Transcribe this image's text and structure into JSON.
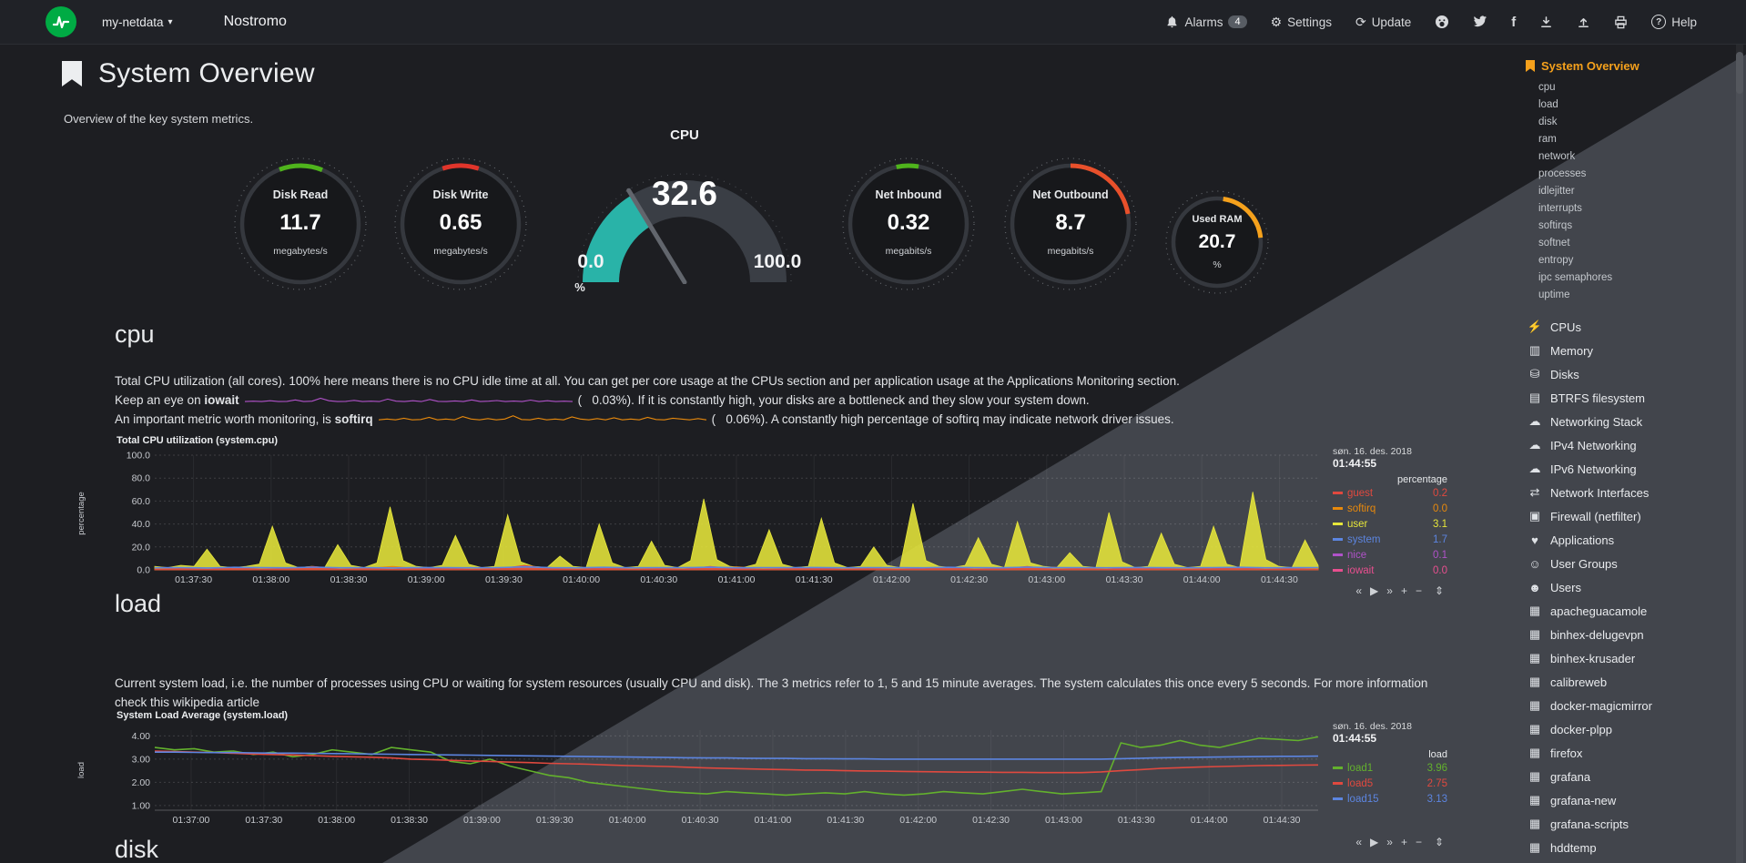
{
  "navbar": {
    "menu_label": "my-netdata",
    "hostname": "Nostromo",
    "alarms_label": "Alarms",
    "alarms_count": "4",
    "settings_label": "Settings",
    "update_label": "Update",
    "help_label": "Help"
  },
  "page": {
    "title": "System Overview",
    "subtitle": "Overview of the key system metrics.",
    "cpu_heading": "cpu",
    "load_heading": "load",
    "disk_heading": "disk"
  },
  "cpu_text": {
    "p1": "Total CPU utilization (all cores). 100% here means there is no CPU idle time at all. You can get per core usage at the CPUs section and per application usage at the Applications Monitoring section.",
    "p2_pre": "Keep an eye on ",
    "p2_bold": "iowait",
    "p2_open": "(   ",
    "p2_value": "0.03%",
    "p2_post": "). If it is constantly high, your disks are a bottleneck and they slow your system down.",
    "p3_pre": "An important metric worth monitoring, is ",
    "p3_bold": "softirq",
    "p3_open": "(   ",
    "p3_value": "0.06%",
    "p3_post": "). A constantly high percentage of softirq may indicate network driver issues."
  },
  "load_text": {
    "p1": "Current system load, i.e. the number of processes using CPU or waiting for system resources (usually CPU and disk). The 3 metrics refer to 1, 5 and 15 minute averages. The system calculates this once every 5 seconds. For more information check this wikipedia article"
  },
  "gauges": [
    {
      "id": "disk-read",
      "label": "Disk Read",
      "value": "11.7",
      "unit": "megabytes/s",
      "arc_color": "#4fb41c",
      "arc_offset": -21,
      "arc_sweep": 43
    },
    {
      "id": "disk-write",
      "label": "Disk Write",
      "value": "0.65",
      "unit": "megabytes/s",
      "arc_color": "#e0352b",
      "arc_offset": -18,
      "arc_sweep": 36
    },
    {
      "id": "net-inbound",
      "label": "Net Inbound",
      "value": "0.32",
      "unit": "megabits/s",
      "arc_color": "#4fb41c",
      "arc_offset": -12,
      "arc_sweep": 22
    },
    {
      "id": "net-outbound",
      "label": "Net Outbound",
      "value": "8.7",
      "unit": "megabits/s",
      "arc_color": "#e8502b",
      "arc_offset": 0,
      "arc_sweep": 80
    },
    {
      "id": "used-ram",
      "label": "Used RAM",
      "value": "20.7",
      "unit": "%",
      "arc_color": "#f5a11c",
      "arc_offset": 8,
      "arc_sweep": 76
    }
  ],
  "cpu_gauge": {
    "title": "CPU",
    "value": "32.6",
    "min": "0.0",
    "max": "100.0",
    "unit": "%",
    "percent": 32.6,
    "color": "#29b3a8"
  },
  "charts": {
    "cpu": {
      "title": "Total CPU utilization (system.cpu)",
      "date": "søn. 16. des. 2018",
      "time": "01:44:55",
      "unit": "percentage",
      "legend": [
        {
          "name": "guest",
          "value": "0.2",
          "color": "#e0493f"
        },
        {
          "name": "softirq",
          "value": "0.0",
          "color": "#e8890c"
        },
        {
          "name": "user",
          "value": "3.1",
          "color": "#e6e63a"
        },
        {
          "name": "system",
          "value": "1.7",
          "color": "#5c85e0"
        },
        {
          "name": "nice",
          "value": "0.1",
          "color": "#b052c9"
        },
        {
          "name": "iowait",
          "value": "0.0",
          "color": "#e84f8f"
        }
      ]
    },
    "load": {
      "title": "System Load Average (system.load)",
      "date": "søn. 16. des. 2018",
      "time": "01:44:55",
      "unit": "load",
      "legend": [
        {
          "name": "load1",
          "value": "3.96",
          "color": "#63b12d"
        },
        {
          "name": "load5",
          "value": "2.75",
          "color": "#e0493f"
        },
        {
          "name": "load15",
          "value": "3.13",
          "color": "#5c85e0"
        }
      ]
    }
  },
  "chart_data": [
    {
      "type": "area",
      "title": "Total CPU utilization (system.cpu)",
      "ylabel": "percentage",
      "ylim": [
        0,
        100
      ],
      "yticks": [
        "100.0",
        "80.0",
        "60.0",
        "40.0",
        "20.0",
        "0.0"
      ],
      "x": [
        "01:37:30",
        "01:38:00",
        "01:38:30",
        "01:39:00",
        "01:39:30",
        "01:40:00",
        "01:40:30",
        "01:41:00",
        "01:41:30",
        "01:42:00",
        "01:42:30",
        "01:43:00",
        "01:43:30",
        "01:44:00",
        "01:44:30"
      ],
      "series": [
        {
          "name": "user",
          "color": "#e6e63a",
          "fill": true,
          "values": [
            3,
            2,
            4,
            3,
            18,
            3,
            2,
            3,
            5,
            38,
            6,
            2,
            3,
            2,
            22,
            4,
            2,
            6,
            55,
            8,
            3,
            2,
            4,
            30,
            5,
            2,
            3,
            48,
            7,
            3,
            2,
            12,
            3,
            2,
            40,
            6,
            2,
            3,
            25,
            4,
            2,
            8,
            62,
            9,
            3,
            2,
            5,
            35,
            5,
            2,
            3,
            45,
            6,
            2,
            3,
            20,
            4,
            2,
            58,
            8,
            3,
            2,
            4,
            28,
            5,
            2,
            42,
            6,
            3,
            2,
            15,
            3,
            2,
            50,
            7,
            2,
            3,
            32,
            5,
            2,
            3,
            38,
            5,
            2,
            68,
            9,
            3,
            2,
            26,
            4
          ]
        },
        {
          "name": "softirq",
          "color": "#e8890c",
          "fill": true,
          "values": [
            1,
            1.5,
            1,
            2,
            1,
            1.2,
            2.5,
            1,
            1.5,
            3,
            1.2,
            1,
            1.4,
            2,
            1,
            1.3,
            1,
            2.2,
            1.2,
            1,
            1.5,
            1,
            2.8,
            1.1,
            1,
            1.4,
            1,
            2,
            1,
            1.2,
            1.6,
            1,
            1.3,
            1,
            2.4,
            1,
            1.5,
            1,
            1.2,
            1,
            1.8,
            1,
            1.4,
            1,
            1.2
          ]
        },
        {
          "name": "guest",
          "color": "#e0493f",
          "fill": true,
          "values": [
            0.5,
            1,
            0.5,
            2,
            0.5,
            1,
            3,
            0.5,
            1,
            0.5,
            2,
            1,
            0.5,
            1,
            4,
            1,
            0.5,
            2,
            0.5,
            1,
            0.5,
            3,
            1,
            0.5,
            1,
            2,
            0.5,
            1,
            0.5,
            1,
            2,
            0.5,
            1,
            3,
            0.5,
            1,
            0.5,
            2,
            1,
            0.5,
            1,
            2,
            0.5,
            1,
            0.5
          ]
        },
        {
          "name": "system",
          "color": "#5c85e0",
          "fill": false,
          "values": [
            1.8,
            2,
            1.7,
            2.2,
            1.9,
            1.8,
            2.4,
            1.8,
            2,
            1.7,
            2.1,
            1.9,
            1.8,
            2,
            2.6,
            1.9,
            1.8,
            2.2,
            1.8,
            2,
            1.9,
            2.3,
            1.8,
            1.9,
            2,
            2.1,
            1.8,
            2,
            1.9,
            1.8,
            2.2,
            1.9,
            1.8,
            2.4,
            1.9,
            2,
            1.8,
            2.1,
            1.9,
            1.8,
            2,
            2.2,
            1.8,
            1.9,
            2
          ]
        }
      ]
    },
    {
      "type": "line",
      "title": "System Load Average (system.load)",
      "ylabel": "load",
      "ylim": [
        0.8,
        4.25
      ],
      "yticks": [
        "4.00",
        "3.00",
        "2.00",
        "1.00"
      ],
      "x": [
        "01:37:00",
        "01:37:30",
        "01:38:00",
        "01:38:30",
        "01:39:00",
        "01:39:30",
        "01:40:00",
        "01:40:30",
        "01:41:00",
        "01:41:30",
        "01:42:00",
        "01:42:30",
        "01:43:00",
        "01:43:30",
        "01:44:00",
        "01:44:30"
      ],
      "series": [
        {
          "name": "load1",
          "color": "#63b12d",
          "fill": false,
          "values": [
            3.5,
            3.4,
            3.45,
            3.3,
            3.35,
            3.2,
            3.3,
            3.1,
            3.2,
            3.4,
            3.3,
            3.2,
            3.5,
            3.4,
            3.3,
            2.9,
            2.8,
            3.0,
            2.7,
            2.5,
            2.3,
            2.2,
            2.0,
            1.9,
            1.8,
            1.7,
            1.6,
            1.55,
            1.5,
            1.6,
            1.55,
            1.5,
            1.45,
            1.5,
            1.55,
            1.5,
            1.6,
            1.5,
            1.45,
            1.5,
            1.6,
            1.55,
            1.5,
            1.6,
            1.7,
            1.6,
            1.5,
            1.55,
            1.6,
            3.7,
            3.5,
            3.6,
            3.8,
            3.6,
            3.5,
            3.7,
            3.9,
            3.85,
            3.8,
            3.96
          ]
        },
        {
          "name": "load5",
          "color": "#e0493f",
          "fill": false,
          "values": [
            3.35,
            3.33,
            3.3,
            3.28,
            3.25,
            3.22,
            3.2,
            3.18,
            3.15,
            3.12,
            3.1,
            3.08,
            3.05,
            3.0,
            2.98,
            2.95,
            2.92,
            2.9,
            2.87,
            2.85,
            2.82,
            2.8,
            2.78,
            2.75,
            2.72,
            2.7,
            2.68,
            2.65,
            2.62,
            2.6,
            2.58,
            2.56,
            2.55,
            2.53,
            2.52,
            2.5,
            2.49,
            2.48,
            2.47,
            2.46,
            2.45,
            2.44,
            2.44,
            2.43,
            2.43,
            2.42,
            2.42,
            2.42,
            2.45,
            2.5,
            2.55,
            2.6,
            2.63,
            2.66,
            2.68,
            2.7,
            2.72,
            2.73,
            2.74,
            2.75
          ]
        },
        {
          "name": "load15",
          "color": "#5c85e0",
          "fill": false,
          "values": [
            3.3,
            3.3,
            3.29,
            3.28,
            3.28,
            3.27,
            3.26,
            3.26,
            3.25,
            3.24,
            3.23,
            3.22,
            3.21,
            3.2,
            3.19,
            3.18,
            3.17,
            3.16,
            3.15,
            3.14,
            3.13,
            3.12,
            3.11,
            3.1,
            3.09,
            3.08,
            3.07,
            3.06,
            3.05,
            3.05,
            3.04,
            3.03,
            3.03,
            3.02,
            3.02,
            3.01,
            3.01,
            3.0,
            3.0,
            3.0,
            3.0,
            3.0,
            3.0,
            3.0,
            3.0,
            3.0,
            3.0,
            3.0,
            3.0,
            3.02,
            3.04,
            3.06,
            3.07,
            3.08,
            3.09,
            3.1,
            3.11,
            3.12,
            3.12,
            3.13
          ]
        }
      ]
    }
  ],
  "sparklines": {
    "iowait": {
      "color": "#b052c9",
      "values": [
        0.1,
        0.15,
        0.1,
        0.2,
        0.1,
        0.12,
        0.3,
        0.1,
        0.15,
        0.5,
        0.2,
        0.1,
        0.12,
        0.25,
        0.1,
        0.15,
        0.1,
        0.4,
        0.15,
        0.1,
        0.2,
        0.1,
        0.35,
        0.12,
        0.1,
        0.18,
        0.1,
        0.3,
        0.1,
        0.14,
        0.22,
        0.1,
        0.16,
        0.1,
        0.28,
        0.1,
        0.2,
        0.1,
        0.15,
        0.1
      ]
    },
    "softirq": {
      "color": "#e8890c",
      "values": [
        0.2,
        0.3,
        0.2,
        0.4,
        0.2,
        0.25,
        0.5,
        0.2,
        0.3,
        0.2,
        0.6,
        0.3,
        0.2,
        0.35,
        0.2,
        0.3,
        0.7,
        0.25,
        0.2,
        0.4,
        0.2,
        0.3,
        0.2,
        0.55,
        0.3,
        0.2,
        0.35,
        0.2,
        0.45,
        0.2,
        0.3,
        0.2,
        0.5,
        0.25,
        0.2,
        0.4,
        0.3,
        0.2,
        0.35,
        0.2
      ]
    }
  },
  "sidebar": {
    "active": "System Overview",
    "sub_items": [
      "cpu",
      "load",
      "disk",
      "ram",
      "network",
      "processes",
      "idlejitter",
      "interrupts",
      "softirqs",
      "softnet",
      "entropy",
      "ipc semaphores",
      "uptime"
    ],
    "menu_items": [
      {
        "icon": "bolt",
        "glyph": "⚡",
        "label": "CPUs"
      },
      {
        "icon": "memory",
        "glyph": "▥",
        "label": "Memory"
      },
      {
        "icon": "hard-disks",
        "glyph": "⛁",
        "label": "Disks"
      },
      {
        "icon": "folder",
        "glyph": "▤",
        "label": "BTRFS filesystem"
      },
      {
        "icon": "cloud",
        "glyph": "☁",
        "label": "Networking Stack"
      },
      {
        "icon": "cloud",
        "glyph": "☁",
        "label": "IPv4 Networking"
      },
      {
        "icon": "cloud",
        "glyph": "☁",
        "label": "IPv6 Networking"
      },
      {
        "icon": "interfaces",
        "glyph": "⇄",
        "label": "Network Interfaces"
      },
      {
        "icon": "shield",
        "glyph": "▣",
        "label": "Firewall (netfilter)"
      },
      {
        "icon": "heartbeat",
        "glyph": "♥",
        "label": "Applications"
      },
      {
        "icon": "users-group",
        "glyph": "☺",
        "label": "User Groups"
      },
      {
        "icon": "user",
        "glyph": "☻",
        "label": "Users"
      }
    ],
    "app_items": [
      "apacheguacamole",
      "binhex-delugevpn",
      "binhex-krusader",
      "calibreweb",
      "docker-magicmirror",
      "docker-plpp",
      "firefox",
      "grafana",
      "grafana-new",
      "grafana-scripts",
      "hddtemp"
    ]
  },
  "icons": {
    "toolbar": {
      "back": "«",
      "play": "▶",
      "forward": "»",
      "plus": "+",
      "minus": "−",
      "resize": "⇕"
    },
    "app_glyph": "▦",
    "dropdown_caret": "▾"
  }
}
